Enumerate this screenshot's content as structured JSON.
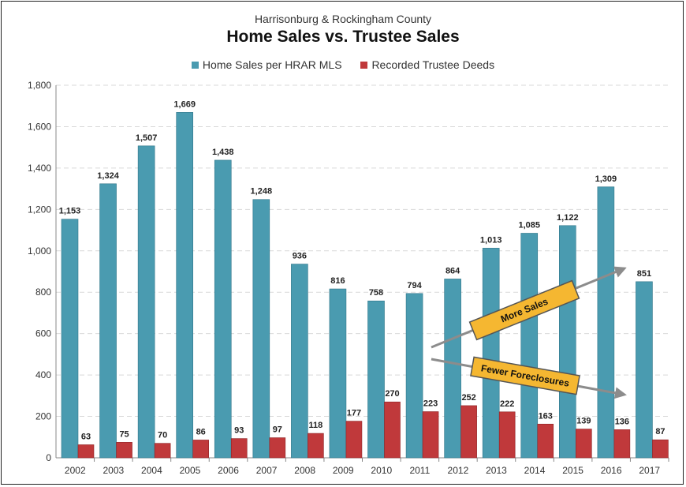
{
  "colors": {
    "home_sales": "#4a9bb0",
    "trustee": "#c0393b",
    "callout_fill": "#f5b731",
    "arrow": "#8c8c8c"
  },
  "chart_data": {
    "type": "bar",
    "subtitle": "Harrisonburg & Rockingham County",
    "title": "Home Sales vs. Trustee Sales",
    "categories": [
      "2002",
      "2003",
      "2004",
      "2005",
      "2006",
      "2007",
      "2008",
      "2009",
      "2010",
      "2011",
      "2012",
      "2013",
      "2014",
      "2015",
      "2016",
      "2017"
    ],
    "series": [
      {
        "name": "Home Sales per HRAR MLS",
        "values": [
          1153,
          1324,
          1507,
          1669,
          1438,
          1248,
          936,
          816,
          758,
          794,
          864,
          1013,
          1085,
          1122,
          1309,
          851
        ],
        "labels": [
          "1,153",
          "1,324",
          "1,507",
          "1,669",
          "1,438",
          "1,248",
          "936",
          "816",
          "758",
          "794",
          "864",
          "1,013",
          "1,085",
          "1,122",
          "1,309",
          "851"
        ]
      },
      {
        "name": "Recorded Trustee Deeds",
        "values": [
          63,
          75,
          70,
          86,
          93,
          97,
          118,
          177,
          270,
          223,
          252,
          222,
          163,
          139,
          136,
          87
        ],
        "labels": [
          "63",
          "75",
          "70",
          "86",
          "93",
          "97",
          "118",
          "177",
          "270",
          "223",
          "252",
          "222",
          "163",
          "139",
          "136",
          "87"
        ]
      }
    ],
    "ylim": [
      0,
      1800
    ],
    "yticks": [
      0,
      200,
      400,
      600,
      800,
      1000,
      1200,
      1400,
      1600,
      1800
    ],
    "ytick_labels": [
      "0",
      "200",
      "400",
      "600",
      "800",
      "1,000",
      "1,200",
      "1,400",
      "1,600",
      "1,800"
    ],
    "grid": true,
    "legend_position": "top-center",
    "annotations": [
      "More Sales",
      "Fewer Foreclosures"
    ]
  }
}
